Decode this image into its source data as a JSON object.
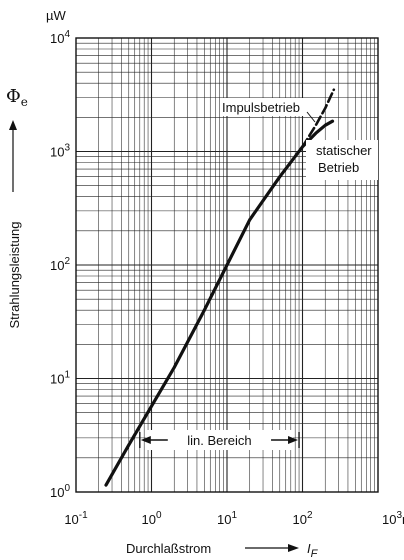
{
  "chart_data": {
    "type": "line",
    "x_scale": "log",
    "y_scale": "log",
    "xlim": [
      0.1,
      1000
    ],
    "ylim": [
      1,
      10000
    ],
    "grid": true,
    "x_ticks": [
      {
        "value": 0.1,
        "base": "10",
        "exp": "-1",
        "unit": ""
      },
      {
        "value": 1,
        "base": "10",
        "exp": "0",
        "unit": ""
      },
      {
        "value": 10,
        "base": "10",
        "exp": "1",
        "unit": ""
      },
      {
        "value": 100,
        "base": "10",
        "exp": "2",
        "unit": ""
      },
      {
        "value": 1000,
        "base": "10",
        "exp": "3",
        "unit": "mA"
      }
    ],
    "y_ticks": [
      {
        "value": 1,
        "base": "10",
        "exp": "0"
      },
      {
        "value": 10,
        "base": "10",
        "exp": "1"
      },
      {
        "value": 100,
        "base": "10",
        "exp": "2"
      },
      {
        "value": 1000,
        "base": "10",
        "exp": "3"
      },
      {
        "value": 10000,
        "base": "10",
        "exp": "4"
      }
    ],
    "y_unit": "µW",
    "xlabel": "Durchlaßstrom",
    "x_symbol": "I",
    "x_symbol_sub": "F",
    "ylabel": "Strahlungsleistung",
    "y_symbol": "Φ",
    "y_symbol_sub": "e",
    "series": [
      {
        "name": "statischer Betrieb",
        "style": "solid",
        "x": [
          0.25,
          0.5,
          1,
          2,
          5,
          10,
          20,
          50,
          100,
          150,
          200,
          250
        ],
        "y": [
          1.15,
          2.6,
          5.7,
          12.5,
          40,
          100,
          250,
          600,
          1100,
          1450,
          1700,
          1850
        ]
      },
      {
        "name": "Impulsbetrieb",
        "style": "dashed",
        "x": [
          100,
          150,
          200,
          260
        ],
        "y": [
          1100,
          1700,
          2400,
          3500
        ]
      }
    ],
    "annotations": {
      "impuls": "Impulsbetrieb",
      "statisch_1": "statischer",
      "statisch_2": "Betrieb",
      "lin_range": "lin. Bereich",
      "lin_range_x": [
        0.7,
        90
      ]
    },
    "colors": {
      "line": "#111111",
      "grid": "#222222",
      "background": "#ffffff"
    }
  }
}
